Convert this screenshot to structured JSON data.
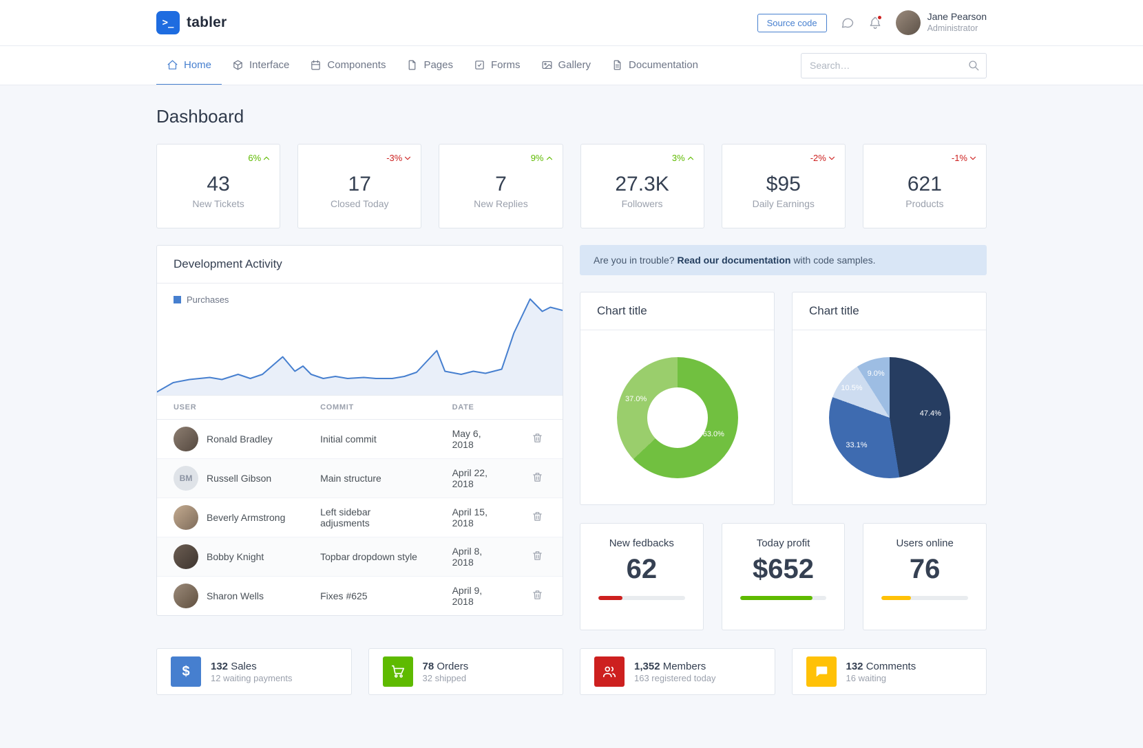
{
  "header": {
    "brand": "tabler",
    "logo_glyph": ">_",
    "source_code_label": "Source code",
    "user": {
      "name": "Jane Pearson",
      "role": "Administrator"
    }
  },
  "nav": {
    "items": [
      {
        "label": "Home",
        "active": true
      },
      {
        "label": "Interface",
        "active": false
      },
      {
        "label": "Components",
        "active": false
      },
      {
        "label": "Pages",
        "active": false
      },
      {
        "label": "Forms",
        "active": false
      },
      {
        "label": "Gallery",
        "active": false
      },
      {
        "label": "Documentation",
        "active": false
      }
    ],
    "search_placeholder": "Search…"
  },
  "page": {
    "title": "Dashboard"
  },
  "colors": {
    "primary": "#467fcf",
    "green": "#5eba00",
    "red": "#cd201f",
    "yellow": "#ffc107",
    "background": "#f5f7fb"
  },
  "stats": [
    {
      "delta": "6%",
      "trend": "up",
      "value": "43",
      "label": "New Tickets"
    },
    {
      "delta": "-3%",
      "trend": "down",
      "value": "17",
      "label": "Closed Today"
    },
    {
      "delta": "9%",
      "trend": "up",
      "value": "7",
      "label": "New Replies"
    },
    {
      "delta": "3%",
      "trend": "up",
      "value": "27.3K",
      "label": "Followers"
    },
    {
      "delta": "-2%",
      "trend": "down",
      "value": "$95",
      "label": "Daily Earnings"
    },
    {
      "delta": "-1%",
      "trend": "down",
      "value": "621",
      "label": "Products"
    }
  ],
  "development": {
    "title": "Development Activity",
    "chart": {
      "type": "area",
      "series": "Purchases",
      "color": "#467fcf",
      "points": [
        [
          0,
          97
        ],
        [
          4,
          88
        ],
        [
          8,
          85
        ],
        [
          13,
          83
        ],
        [
          16,
          85
        ],
        [
          20,
          80
        ],
        [
          23,
          84
        ],
        [
          26,
          80
        ],
        [
          31,
          63
        ],
        [
          34,
          77
        ],
        [
          36,
          72
        ],
        [
          38,
          80
        ],
        [
          41,
          84
        ],
        [
          44,
          82
        ],
        [
          47,
          84
        ],
        [
          51,
          83
        ],
        [
          54,
          84
        ],
        [
          58,
          84
        ],
        [
          61,
          82
        ],
        [
          64,
          78
        ],
        [
          69,
          57
        ],
        [
          71,
          77
        ],
        [
          75,
          80
        ],
        [
          78,
          77
        ],
        [
          81,
          79
        ],
        [
          85,
          75
        ],
        [
          88,
          40
        ],
        [
          92,
          7
        ],
        [
          95,
          19
        ],
        [
          97,
          15
        ],
        [
          100,
          18
        ]
      ]
    },
    "table": {
      "headers": {
        "user": "USER",
        "commit": "COMMIT",
        "date": "DATE"
      },
      "rows": [
        {
          "user": "Ronald Bradley",
          "commit": "Initial commit",
          "date": "May 6, 2018"
        },
        {
          "user": "Russell Gibson",
          "initials": "BM",
          "commit": "Main structure",
          "date": "April 22, 2018"
        },
        {
          "user": "Beverly Armstrong",
          "commit": "Left sidebar adjusments",
          "date": "April 15, 2018"
        },
        {
          "user": "Bobby Knight",
          "commit": "Topbar dropdown style",
          "date": "April 8, 2018"
        },
        {
          "user": "Sharon Wells",
          "commit": "Fixes #625",
          "date": "April 9, 2018"
        }
      ]
    }
  },
  "alert": {
    "prefix": "Are you in trouble?",
    "link": "Read our documentation",
    "suffix": "with code samples."
  },
  "charts": {
    "donut": {
      "title": "Chart title",
      "type": "donut",
      "slices": [
        {
          "label": "63.0%",
          "value": 63.0,
          "color": "#71c040"
        },
        {
          "label": "37.0%",
          "value": 37.0,
          "color": "#9ace6c"
        }
      ]
    },
    "pie": {
      "title": "Chart title",
      "type": "pie",
      "slices": [
        {
          "label": "47.4%",
          "value": 47.4,
          "color": "#263d61"
        },
        {
          "label": "33.1%",
          "value": 33.1,
          "color": "#3e6bb0"
        },
        {
          "label": "10.5%",
          "value": 10.5,
          "color": "#cddcf0"
        },
        {
          "label": "9.0%",
          "value": 9.0,
          "color": "#9dbde3"
        }
      ]
    }
  },
  "minis": [
    {
      "title": "New fedbacks",
      "value": "62",
      "progress": 28,
      "color": "#cd201f"
    },
    {
      "title": "Today profit",
      "value": "$652",
      "progress": 84,
      "color": "#5eba00"
    },
    {
      "title": "Users online",
      "value": "76",
      "progress": 34,
      "color": "#ffc107"
    }
  ],
  "kpis": [
    {
      "value": "132",
      "label": "Sales",
      "sub": "12 waiting payments",
      "color": "#467fcf",
      "icon": "dollar-icon",
      "glyph": "$"
    },
    {
      "value": "78",
      "label": "Orders",
      "sub": "32 shipped",
      "color": "#5eba00",
      "icon": "shopping-cart-icon"
    },
    {
      "value": "1,352",
      "label": "Members",
      "sub": "163 registered today",
      "color": "#cd201f",
      "icon": "users-icon"
    },
    {
      "value": "132",
      "label": "Comments",
      "sub": "16 waiting",
      "color": "#ffc107",
      "icon": "message-icon"
    }
  ]
}
